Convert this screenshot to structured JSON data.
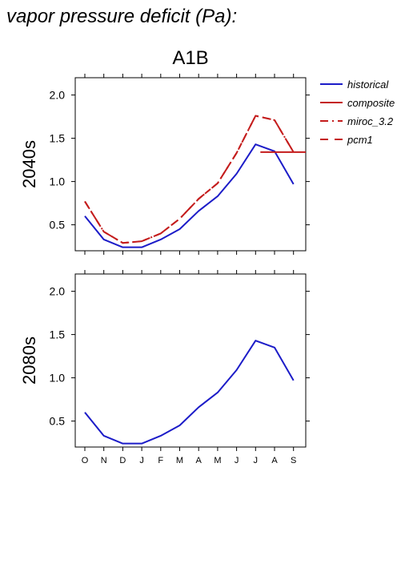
{
  "figure": {
    "title": "vapor pressure deficit (Pa):",
    "scenario": "A1B"
  },
  "chart_data": [
    {
      "type": "line",
      "panel_label": "2040s",
      "x": [
        "O",
        "N",
        "D",
        "J",
        "F",
        "M",
        "A",
        "M",
        "J",
        "J",
        "A",
        "S"
      ],
      "ylim": [
        0.2,
        2.2
      ],
      "yticks": [
        0.5,
        1.0,
        1.5,
        2.0
      ],
      "ytick_labels": [
        "0.5",
        "1.0",
        "1.5",
        "2.0"
      ],
      "series": [
        {
          "name": "historical",
          "color": "#1c1cc8",
          "style": "solid",
          "values": [
            0.6,
            0.33,
            0.24,
            0.24,
            0.33,
            0.45,
            0.66,
            0.83,
            1.09,
            1.43,
            1.35,
            0.97
          ]
        },
        {
          "name": "miroc_3.2",
          "color": "#c41c1c",
          "style": "dashdot",
          "values": [
            0.77,
            0.42,
            0.29,
            0.31,
            0.4,
            0.57,
            0.8,
            0.98,
            1.33,
            1.76,
            1.71,
            1.34
          ]
        },
        {
          "name": "pcm1",
          "color": "#c41c1c",
          "style": "dashed",
          "values": [
            0.77,
            0.42,
            0.29,
            0.31,
            0.4,
            0.57,
            0.8,
            0.98,
            1.33,
            1.76,
            1.71,
            1.34
          ]
        },
        {
          "name": "composite",
          "color": "#c41c1c",
          "style": "solid",
          "values": [
            null,
            null,
            null,
            null,
            null,
            null,
            null,
            null,
            null,
            1.34,
            1.34,
            1.34
          ]
        }
      ]
    },
    {
      "type": "line",
      "panel_label": "2080s",
      "x": [
        "O",
        "N",
        "D",
        "J",
        "F",
        "M",
        "A",
        "M",
        "J",
        "J",
        "A",
        "S"
      ],
      "xtick_labels": [
        "O",
        "N",
        "D",
        "J",
        "F",
        "M",
        "A",
        "M",
        "J",
        "J",
        "A",
        "S"
      ],
      "ylim": [
        0.2,
        2.2
      ],
      "yticks": [
        0.5,
        1.0,
        1.5,
        2.0
      ],
      "ytick_labels": [
        "0.5",
        "1.0",
        "1.5",
        "2.0"
      ],
      "series": [
        {
          "name": "historical",
          "color": "#1c1cc8",
          "style": "solid",
          "values": [
            0.6,
            0.33,
            0.24,
            0.24,
            0.33,
            0.45,
            0.66,
            0.83,
            1.09,
            1.43,
            1.35,
            0.97
          ]
        }
      ]
    }
  ],
  "legend": {
    "placement": "right",
    "items": [
      {
        "label": "historical",
        "color": "#1c1cc8",
        "style": "solid"
      },
      {
        "label": "composite",
        "color": "#c41c1c",
        "style": "solid"
      },
      {
        "label": "miroc_3.2",
        "color": "#c41c1c",
        "style": "dashdot"
      },
      {
        "label": "pcm1",
        "color": "#c41c1c",
        "style": "dashed"
      }
    ]
  }
}
